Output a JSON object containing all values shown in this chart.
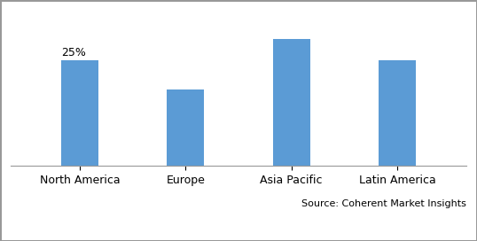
{
  "categories": [
    "North America",
    "Europe",
    "Asia Pacific",
    "Latin America"
  ],
  "values": [
    25,
    18,
    30,
    25
  ],
  "bar_color": "#5B9BD5",
  "annotation_label": "25%",
  "annotation_bar_index": 0,
  "source_text": "Source: Coherent Market Insights",
  "source_fontsize": 8,
  "annotation_fontsize": 9,
  "tick_fontsize": 9,
  "bar_width": 0.35,
  "ylim": [
    0,
    36
  ],
  "background_color": "#ffffff",
  "grid_color": "#cccccc",
  "border_color": "#999999"
}
